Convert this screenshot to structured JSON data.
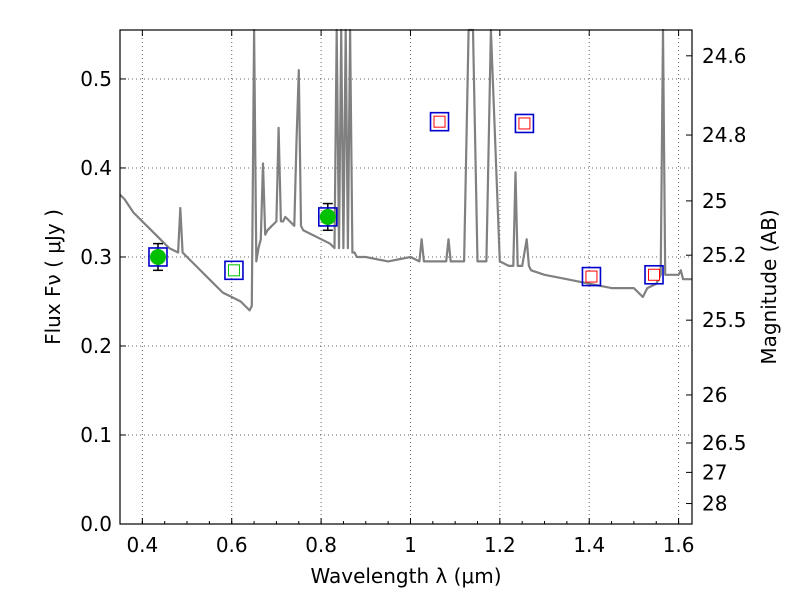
{
  "chart_data": {
    "type": "line",
    "xlabel": "Wavelength  λ (μm)",
    "ylabel": "Flux  Fν  ( μJy )",
    "ylabel_right": "Magnitude (AB)",
    "xlim": [
      0.35,
      1.63
    ],
    "ylim": [
      0.0,
      0.555
    ],
    "grid": true,
    "x_ticks": [
      0.4,
      0.6,
      0.8,
      1.0,
      1.2,
      1.4,
      1.6
    ],
    "x_tick_labels": [
      "0.4",
      "0.6",
      "0.8",
      "1",
      "1.2",
      "1.4",
      "1.6"
    ],
    "y_ticks": [
      0.0,
      0.1,
      0.2,
      0.3,
      0.4,
      0.5
    ],
    "y_tick_labels": [
      "0.0",
      "0.1",
      "0.2",
      "0.3",
      "0.4",
      "0.5"
    ],
    "right_ticks": [
      {
        "label": "24.6",
        "flux": 0.526
      },
      {
        "label": "24.8",
        "flux": 0.437
      },
      {
        "label": "25",
        "flux": 0.363
      },
      {
        "label": "25.2",
        "flux": 0.302
      },
      {
        "label": "25.5",
        "flux": 0.229
      },
      {
        "label": "26",
        "flux": 0.145
      },
      {
        "label": "26.5",
        "flux": 0.091
      },
      {
        "label": "27",
        "flux": 0.058
      },
      {
        "label": "28",
        "flux": 0.023
      }
    ],
    "series": [
      {
        "color": "#808080",
        "x": [
          0.35,
          0.36,
          0.38,
          0.4,
          0.42,
          0.44,
          0.46,
          0.48,
          0.485,
          0.49,
          0.5,
          0.52,
          0.54,
          0.56,
          0.58,
          0.6,
          0.62,
          0.63,
          0.64,
          0.645,
          0.65,
          0.655,
          0.66,
          0.665,
          0.67,
          0.675,
          0.68,
          0.69,
          0.7,
          0.705,
          0.71,
          0.715,
          0.72,
          0.74,
          0.745,
          0.75,
          0.755,
          0.76,
          0.78,
          0.8,
          0.82,
          0.83,
          0.835,
          0.84,
          0.845,
          0.85,
          0.855,
          0.86,
          0.865,
          0.87,
          0.875,
          0.88,
          0.9,
          0.95,
          1.0,
          1.02,
          1.025,
          1.03,
          1.05,
          1.07,
          1.08,
          1.085,
          1.09,
          1.1,
          1.12,
          1.13,
          1.14,
          1.15,
          1.17,
          1.18,
          1.2,
          1.22,
          1.23,
          1.235,
          1.24,
          1.25,
          1.26,
          1.265,
          1.27,
          1.3,
          1.35,
          1.4,
          1.45,
          1.5,
          1.52,
          1.53,
          1.55,
          1.56,
          1.565,
          1.57,
          1.58,
          1.59,
          1.6,
          1.605,
          1.61,
          1.63
        ],
        "y": [
          0.37,
          0.365,
          0.35,
          0.34,
          0.33,
          0.32,
          0.31,
          0.305,
          0.355,
          0.305,
          0.3,
          0.29,
          0.28,
          0.27,
          0.26,
          0.255,
          0.25,
          0.245,
          0.24,
          0.245,
          0.555,
          0.295,
          0.31,
          0.32,
          0.405,
          0.325,
          0.33,
          0.335,
          0.34,
          0.445,
          0.34,
          0.34,
          0.345,
          0.335,
          0.43,
          0.51,
          0.335,
          0.33,
          0.325,
          0.32,
          0.315,
          0.31,
          0.555,
          0.31,
          0.555,
          0.31,
          0.555,
          0.31,
          0.555,
          0.305,
          0.305,
          0.3,
          0.3,
          0.295,
          0.3,
          0.295,
          0.32,
          0.295,
          0.295,
          0.295,
          0.295,
          0.32,
          0.295,
          0.295,
          0.295,
          0.555,
          0.555,
          0.295,
          0.295,
          0.555,
          0.295,
          0.29,
          0.29,
          0.395,
          0.29,
          0.29,
          0.32,
          0.29,
          0.285,
          0.28,
          0.275,
          0.27,
          0.265,
          0.265,
          0.255,
          0.265,
          0.27,
          0.28,
          0.555,
          0.28,
          0.28,
          0.28,
          0.28,
          0.285,
          0.275,
          0.275
        ]
      }
    ],
    "points": [
      {
        "x": 0.435,
        "y": 0.3,
        "err": 0.015,
        "marker": "filled-circle",
        "fill": "#00c000",
        "box": "#0000cc"
      },
      {
        "x": 0.605,
        "y": 0.285,
        "err": 0,
        "marker": "open-square",
        "fill": "#00c000",
        "box": "#0000cc"
      },
      {
        "x": 0.815,
        "y": 0.345,
        "err": 0.015,
        "marker": "filled-circle",
        "fill": "#00c000",
        "box": "#0000cc"
      },
      {
        "x": 1.065,
        "y": 0.452,
        "err": 0,
        "marker": "open-square",
        "fill": "#ff0000",
        "box": "#0000cc"
      },
      {
        "x": 1.255,
        "y": 0.45,
        "err": 0,
        "marker": "open-square",
        "fill": "#ff0000",
        "box": "#0000cc"
      },
      {
        "x": 1.405,
        "y": 0.278,
        "err": 0,
        "marker": "open-square",
        "fill": "#ff0000",
        "box": "#0000cc"
      },
      {
        "x": 1.545,
        "y": 0.28,
        "err": 0,
        "marker": "open-square",
        "fill": "#ff0000",
        "box": "#0000cc"
      }
    ]
  }
}
